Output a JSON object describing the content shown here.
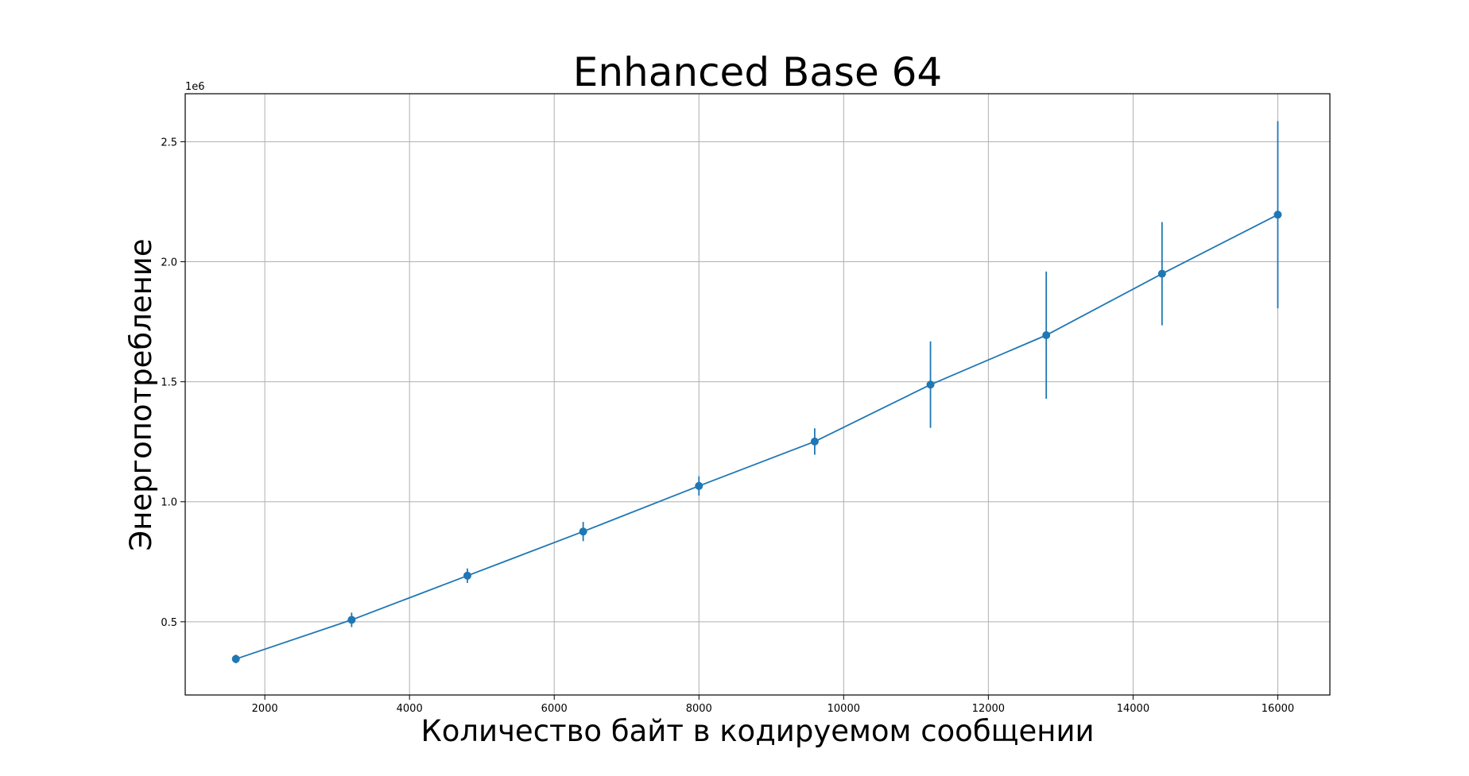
{
  "chart_data": {
    "type": "line",
    "title": "Enhanced Base 64",
    "xlabel": "Количество байт в кодируемом сообщении",
    "ylabel": "Энергопотребление",
    "y_offset_label": "1e6",
    "xlim": [
      900,
      16720
    ],
    "ylim": [
      0.195,
      2.7
    ],
    "y_scale_factor": 1000000,
    "grid": true,
    "xticks": [
      2000,
      4000,
      6000,
      8000,
      10000,
      12000,
      14000,
      16000
    ],
    "xtick_labels": [
      "2000",
      "4000",
      "6000",
      "8000",
      "10000",
      "12000",
      "14000",
      "16000"
    ],
    "yticks": [
      0.5,
      1.0,
      1.5,
      2.0,
      2.5
    ],
    "ytick_labels": [
      "0.5",
      "1.0",
      "1.5",
      "2.0",
      "2.5"
    ],
    "series": [
      {
        "color": "#1f77b4",
        "marker": "circle",
        "x": [
          1600,
          3200,
          4800,
          6400,
          8000,
          9600,
          11200,
          12800,
          14400,
          16000
        ],
        "y": [
          345000,
          508000,
          692000,
          876000,
          1066000,
          1251000,
          1488000,
          1694000,
          1950000,
          2196000
        ],
        "yerr": [
          18000,
          30000,
          30000,
          40000,
          40000,
          55000,
          180000,
          265000,
          215000,
          390000
        ]
      }
    ]
  }
}
